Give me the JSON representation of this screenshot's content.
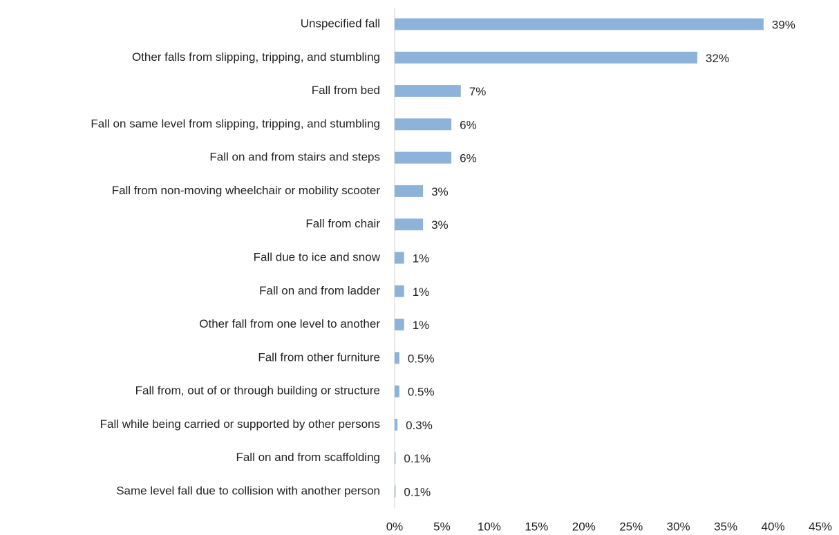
{
  "chart_data": {
    "type": "barh",
    "categories": [
      "Unspecified fall",
      "Other falls from slipping, tripping, and stumbling",
      "Fall from bed",
      "Fall on same level from slipping, tripping, and stumbling",
      "Fall on and from stairs and steps",
      "Fall from non-moving wheelchair or mobility scooter",
      "Fall from chair",
      "Fall due to ice and snow",
      "Fall on and from ladder",
      "Other fall from one level to another",
      "Fall from other furniture",
      "Fall from, out of or through building or structure",
      "Fall while being carried or supported by other persons",
      "Fall on and from scaffolding",
      "Same level fall due to collision with another person"
    ],
    "values": [
      39,
      32,
      7,
      6,
      6,
      3,
      3,
      1,
      1,
      1,
      0.5,
      0.5,
      0.3,
      0.1,
      0.1
    ],
    "value_labels": [
      "39%",
      "32%",
      "7%",
      "6%",
      "6%",
      "3%",
      "3%",
      "1%",
      "1%",
      "1%",
      "0.5%",
      "0.5%",
      "0.3%",
      "0.1%",
      "0.1%"
    ],
    "color": "#8db3da",
    "xlim": [
      0,
      45
    ],
    "xticks": [
      {
        "value": 0,
        "label": "0%"
      },
      {
        "value": 5,
        "label": "5%"
      },
      {
        "value": 10,
        "label": "10%"
      },
      {
        "value": 15,
        "label": "15%"
      },
      {
        "value": 20,
        "label": "20%"
      },
      {
        "value": 25,
        "label": "25%"
      },
      {
        "value": 30,
        "label": "30%"
      },
      {
        "value": 35,
        "label": "35%"
      },
      {
        "value": 40,
        "label": "40%"
      },
      {
        "value": 45,
        "label": "45%"
      }
    ],
    "grid": false
  }
}
